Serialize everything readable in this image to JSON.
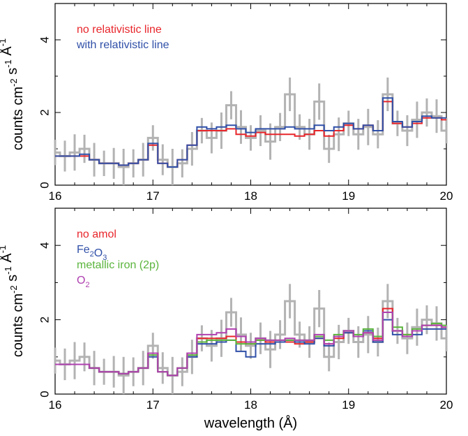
{
  "chart_data": [
    {
      "type": "line",
      "ylabel": "counts cm-2 s-1 Å-1",
      "xlabel": "",
      "xlim": [
        16,
        20
      ],
      "ylim": [
        0,
        5
      ],
      "xticks": [
        "16",
        "17",
        "18",
        "19",
        "20"
      ],
      "yticks": [
        "0",
        "2",
        "4"
      ],
      "legend_placement": "top-left",
      "data": {
        "name": "observed",
        "style": "gray errorbars",
        "x": [
          16.0,
          16.1,
          16.2,
          16.3,
          16.4,
          16.5,
          16.6,
          16.7,
          16.8,
          16.9,
          17.0,
          17.1,
          17.2,
          17.3,
          17.4,
          17.5,
          17.6,
          17.7,
          17.8,
          17.9,
          18.0,
          18.1,
          18.2,
          18.3,
          18.4,
          18.5,
          18.6,
          18.7,
          18.8,
          18.9,
          19.0,
          19.1,
          19.2,
          19.3,
          19.4,
          19.5,
          19.6,
          19.7,
          19.8,
          19.9,
          20.0
        ],
        "y": [
          0.9,
          0.8,
          0.9,
          1.0,
          0.7,
          0.6,
          0.6,
          0.5,
          0.6,
          0.7,
          1.3,
          0.7,
          0.5,
          0.6,
          1.0,
          1.5,
          1.3,
          1.5,
          2.2,
          1.6,
          1.3,
          1.5,
          1.2,
          1.6,
          2.5,
          1.6,
          1.4,
          2.3,
          1.0,
          1.4,
          1.7,
          1.4,
          1.6,
          1.4,
          2.5,
          1.7,
          1.5,
          1.8,
          2.0,
          1.9,
          1.5
        ]
      },
      "series": [
        {
          "name": "no relativistic line",
          "color": "#e8262b",
          "x": [
            16.0,
            16.1,
            16.2,
            16.3,
            16.4,
            16.5,
            16.6,
            16.7,
            16.8,
            16.9,
            17.0,
            17.1,
            17.2,
            17.3,
            17.4,
            17.5,
            17.6,
            17.7,
            17.8,
            17.9,
            18.0,
            18.1,
            18.2,
            18.3,
            18.4,
            18.5,
            18.6,
            18.7,
            18.8,
            18.9,
            19.0,
            19.1,
            19.2,
            19.3,
            19.4,
            19.5,
            19.6,
            19.7,
            19.8,
            19.9,
            20.0
          ],
          "y": [
            0.8,
            0.8,
            0.8,
            0.8,
            0.7,
            0.6,
            0.6,
            0.55,
            0.6,
            0.7,
            1.1,
            0.6,
            0.5,
            0.7,
            1.1,
            1.5,
            1.5,
            1.5,
            1.55,
            1.4,
            1.35,
            1.45,
            1.4,
            1.4,
            1.4,
            1.35,
            1.4,
            1.5,
            1.35,
            1.5,
            1.65,
            1.55,
            1.65,
            1.5,
            2.3,
            1.7,
            1.6,
            1.7,
            1.85,
            1.85,
            1.8
          ]
        },
        {
          "name": "with relativistic line",
          "color": "#3050a8",
          "x": [
            16.0,
            16.1,
            16.2,
            16.3,
            16.4,
            16.5,
            16.6,
            16.7,
            16.8,
            16.9,
            17.0,
            17.1,
            17.2,
            17.3,
            17.4,
            17.5,
            17.6,
            17.7,
            17.8,
            17.9,
            18.0,
            18.1,
            18.2,
            18.3,
            18.4,
            18.5,
            18.6,
            18.7,
            18.8,
            18.9,
            19.0,
            19.1,
            19.2,
            19.3,
            19.4,
            19.5,
            19.6,
            19.7,
            19.8,
            19.9,
            20.0
          ],
          "y": [
            0.8,
            0.8,
            0.8,
            0.85,
            0.7,
            0.6,
            0.6,
            0.55,
            0.6,
            0.7,
            1.15,
            0.6,
            0.5,
            0.7,
            1.1,
            1.6,
            1.55,
            1.6,
            1.65,
            1.55,
            1.45,
            1.55,
            1.55,
            1.55,
            1.6,
            1.55,
            1.55,
            1.65,
            1.5,
            1.6,
            1.7,
            1.55,
            1.65,
            1.5,
            2.4,
            1.75,
            1.6,
            1.75,
            1.9,
            1.85,
            1.85
          ]
        }
      ]
    },
    {
      "type": "line",
      "ylabel": "counts cm-2 s-1 Å-1",
      "xlabel": "wavelength (Å)",
      "xlim": [
        16,
        20
      ],
      "ylim": [
        0,
        5
      ],
      "xticks": [
        "16",
        "17",
        "18",
        "19",
        "20"
      ],
      "yticks": [
        "0",
        "2",
        "4"
      ],
      "legend_placement": "top-left",
      "data": {
        "name": "observed",
        "style": "gray errorbars",
        "x": [
          16.0,
          16.1,
          16.2,
          16.3,
          16.4,
          16.5,
          16.6,
          16.7,
          16.8,
          16.9,
          17.0,
          17.1,
          17.2,
          17.3,
          17.4,
          17.5,
          17.6,
          17.7,
          17.8,
          17.9,
          18.0,
          18.1,
          18.2,
          18.3,
          18.4,
          18.5,
          18.6,
          18.7,
          18.8,
          18.9,
          19.0,
          19.1,
          19.2,
          19.3,
          19.4,
          19.5,
          19.6,
          19.7,
          19.8,
          19.9,
          20.0
        ],
        "y": [
          0.9,
          0.8,
          0.9,
          1.0,
          0.7,
          0.6,
          0.6,
          0.5,
          0.6,
          0.7,
          1.3,
          0.7,
          0.5,
          0.6,
          1.0,
          1.5,
          1.3,
          1.5,
          2.2,
          1.6,
          1.3,
          1.5,
          1.2,
          1.6,
          2.5,
          1.6,
          1.4,
          2.3,
          1.0,
          1.4,
          1.7,
          1.4,
          1.6,
          1.4,
          2.5,
          1.7,
          1.5,
          1.8,
          2.0,
          1.9,
          1.5
        ]
      },
      "series": [
        {
          "name": "no amol",
          "color": "#e8262b",
          "x": [
            16.0,
            16.1,
            16.2,
            16.3,
            16.4,
            16.5,
            16.6,
            16.7,
            16.8,
            16.9,
            17.0,
            17.1,
            17.2,
            17.3,
            17.4,
            17.5,
            17.6,
            17.7,
            17.8,
            17.9,
            18.0,
            18.1,
            18.2,
            18.3,
            18.4,
            18.5,
            18.6,
            18.7,
            18.8,
            18.9,
            19.0,
            19.1,
            19.2,
            19.3,
            19.4,
            19.5,
            19.6,
            19.7,
            19.8,
            19.9,
            20.0
          ],
          "y": [
            0.8,
            0.8,
            0.8,
            0.8,
            0.7,
            0.6,
            0.6,
            0.55,
            0.6,
            0.7,
            1.1,
            0.6,
            0.5,
            0.7,
            1.1,
            1.5,
            1.5,
            1.5,
            1.55,
            1.4,
            1.35,
            1.45,
            1.4,
            1.4,
            1.4,
            1.35,
            1.4,
            1.5,
            1.35,
            1.5,
            1.65,
            1.55,
            1.65,
            1.5,
            2.3,
            1.7,
            1.6,
            1.7,
            1.85,
            1.85,
            1.8
          ]
        },
        {
          "name": "Fe2O3",
          "color": "#3050a8",
          "x": [
            16.0,
            16.1,
            16.2,
            16.3,
            16.4,
            16.5,
            16.6,
            16.7,
            16.8,
            16.9,
            17.0,
            17.1,
            17.2,
            17.3,
            17.4,
            17.5,
            17.6,
            17.7,
            17.8,
            17.9,
            18.0,
            18.1,
            18.2,
            18.3,
            18.4,
            18.5,
            18.6,
            18.7,
            18.8,
            18.9,
            19.0,
            19.1,
            19.2,
            19.3,
            19.4,
            19.5,
            19.6,
            19.7,
            19.8,
            19.9,
            20.0
          ],
          "y": [
            0.8,
            0.8,
            0.8,
            0.8,
            0.7,
            0.6,
            0.6,
            0.55,
            0.6,
            0.7,
            1.0,
            0.6,
            0.5,
            0.7,
            1.0,
            1.35,
            1.35,
            1.4,
            1.45,
            1.15,
            1.0,
            1.35,
            1.35,
            1.4,
            1.45,
            1.4,
            1.35,
            1.5,
            1.3,
            1.55,
            1.65,
            1.55,
            1.7,
            1.4,
            2.0,
            1.6,
            1.55,
            1.6,
            1.75,
            1.75,
            1.75
          ]
        },
        {
          "name": "metallic iron (2p)",
          "color": "#5ab43c",
          "x": [
            16.0,
            16.1,
            16.2,
            16.3,
            16.4,
            16.5,
            16.6,
            16.7,
            16.8,
            16.9,
            17.0,
            17.1,
            17.2,
            17.3,
            17.4,
            17.5,
            17.6,
            17.7,
            17.8,
            17.9,
            18.0,
            18.1,
            18.2,
            18.3,
            18.4,
            18.5,
            18.6,
            18.7,
            18.8,
            18.9,
            19.0,
            19.1,
            19.2,
            19.3,
            19.4,
            19.5,
            19.6,
            19.7,
            19.8,
            19.9,
            20.0
          ],
          "y": [
            0.8,
            0.8,
            0.8,
            0.8,
            0.7,
            0.6,
            0.6,
            0.55,
            0.6,
            0.7,
            1.05,
            0.6,
            0.5,
            0.7,
            1.05,
            1.4,
            1.45,
            1.45,
            1.45,
            1.35,
            1.35,
            1.45,
            1.45,
            1.45,
            1.45,
            1.45,
            1.45,
            1.55,
            1.45,
            1.6,
            1.7,
            1.6,
            1.75,
            1.55,
            2.2,
            1.8,
            1.6,
            1.75,
            1.85,
            1.9,
            1.85
          ]
        },
        {
          "name": "O2",
          "color": "#b040b0",
          "x": [
            16.0,
            16.1,
            16.2,
            16.3,
            16.4,
            16.5,
            16.6,
            16.7,
            16.8,
            16.9,
            17.0,
            17.1,
            17.2,
            17.3,
            17.4,
            17.5,
            17.6,
            17.7,
            17.8,
            17.9,
            18.0,
            18.1,
            18.2,
            18.3,
            18.4,
            18.5,
            18.6,
            18.7,
            18.8,
            18.9,
            19.0,
            19.1,
            19.2,
            19.3,
            19.4,
            19.5,
            19.6,
            19.7,
            19.8,
            19.9,
            20.0
          ],
          "y": [
            0.8,
            0.8,
            0.8,
            0.8,
            0.7,
            0.6,
            0.6,
            0.55,
            0.6,
            0.7,
            1.1,
            0.6,
            0.5,
            0.7,
            1.1,
            1.6,
            1.6,
            1.65,
            1.75,
            1.55,
            1.4,
            1.5,
            1.45,
            1.45,
            1.5,
            1.45,
            1.45,
            1.6,
            1.35,
            1.55,
            1.7,
            1.55,
            1.65,
            1.45,
            2.2,
            1.7,
            1.55,
            1.7,
            1.85,
            1.85,
            1.8
          ]
        }
      ]
    }
  ]
}
